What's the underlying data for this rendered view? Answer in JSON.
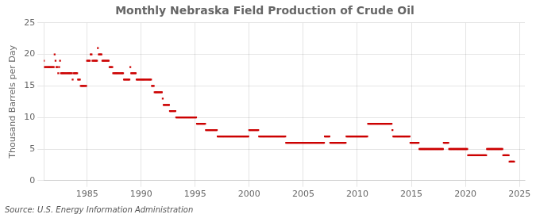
{
  "chart_data": {
    "type": "scatter",
    "title": "Monthly Nebraska Field Production of Crude Oil",
    "y_label": "Thousand Barrels per Day",
    "annotations": [
      "Source: U.S. Energy Information Administration"
    ],
    "color": "#cc0000",
    "marker": "square",
    "grid": true,
    "xlim": [
      1981.0,
      2025.5
    ],
    "xticks": [
      1985,
      1990,
      1995,
      2000,
      2005,
      2010,
      2015,
      2020,
      2025
    ],
    "ylim": [
      0,
      25
    ],
    "yticks": [
      0,
      5,
      10,
      15,
      20,
      25
    ],
    "x": [
      1981,
      1981.0833333333,
      1981.1666666667,
      1981.25,
      1981.3333333333,
      1981.4166666667,
      1981.5,
      1981.5833333333,
      1981.6666666667,
      1981.75,
      1981.8333333333,
      1981.9166666667,
      1982,
      1982.0833333333,
      1982.1666666667,
      1982.25,
      1982.3333333333,
      1982.4166666667,
      1982.5,
      1982.5833333333,
      1982.6666666667,
      1982.75,
      1982.8333333333,
      1982.9166666667,
      1983,
      1983.0833333333,
      1983.1666666667,
      1983.25,
      1983.3333333333,
      1983.4166666667,
      1983.5,
      1983.5833333333,
      1983.6666666667,
      1983.75,
      1983.8333333333,
      1983.9166666667,
      1984,
      1984.0833333333,
      1984.1666666667,
      1984.25,
      1984.3333333333,
      1984.4166666667,
      1984.5,
      1984.5833333333,
      1984.6666666667,
      1984.75,
      1984.8333333333,
      1984.9166666667,
      1985,
      1985.0833333333,
      1985.1666666667,
      1985.25,
      1985.3333333333,
      1985.4166666667,
      1985.5,
      1985.5833333333,
      1985.6666666667,
      1985.75,
      1985.8333333333,
      1985.9166666667,
      1986,
      1986.0833333333,
      1986.1666666667,
      1986.25,
      1986.3333333333,
      1986.4166666667,
      1986.5,
      1986.5833333333,
      1986.6666666667,
      1986.75,
      1986.8333333333,
      1986.9166666667,
      1987,
      1987.0833333333,
      1987.1666666667,
      1987.25,
      1987.3333333333,
      1987.4166666667,
      1987.5,
      1987.5833333333,
      1987.6666666667,
      1987.75,
      1987.8333333333,
      1987.9166666667,
      1988,
      1988.0833333333,
      1988.1666666667,
      1988.25,
      1988.3333333333,
      1988.4166666667,
      1988.5,
      1988.5833333333,
      1988.6666666667,
      1988.75,
      1988.8333333333,
      1988.9166666667,
      1989,
      1989.0833333333,
      1989.1666666667,
      1989.25,
      1989.3333333333,
      1989.4166666667,
      1989.5,
      1989.5833333333,
      1989.6666666667,
      1989.75,
      1989.8333333333,
      1989.9166666667,
      1990,
      1990.0833333333,
      1990.1666666667,
      1990.25,
      1990.3333333333,
      1990.4166666667,
      1990.5,
      1990.5833333333,
      1990.6666666667,
      1990.75,
      1990.8333333333,
      1990.9166666667,
      1991,
      1991.0833333333,
      1991.1666666667,
      1991.25,
      1991.3333333333,
      1991.4166666667,
      1991.5,
      1991.5833333333,
      1991.6666666667,
      1991.75,
      1991.8333333333,
      1991.9166666667,
      1992,
      1992.0833333333,
      1992.1666666667,
      1992.25,
      1992.3333333333,
      1992.4166666667,
      1992.5,
      1992.5833333333,
      1992.6666666667,
      1992.75,
      1992.8333333333,
      1992.9166666667,
      1993,
      1993.0833333333,
      1993.1666666667,
      1993.25,
      1993.3333333333,
      1993.4166666667,
      1993.5,
      1993.5833333333,
      1993.6666666667,
      1993.75,
      1993.8333333333,
      1993.9166666667,
      1994,
      1994.0833333333,
      1994.1666666667,
      1994.25,
      1994.3333333333,
      1994.4166666667,
      1994.5,
      1994.5833333333,
      1994.6666666667,
      1994.75,
      1994.8333333333,
      1994.9166666667,
      1995,
      1995.0833333333,
      1995.1666666667,
      1995.25,
      1995.3333333333,
      1995.4166666667,
      1995.5,
      1995.5833333333,
      1995.6666666667,
      1995.75,
      1995.8333333333,
      1995.9166666667,
      1996,
      1996.0833333333,
      1996.1666666667,
      1996.25,
      1996.3333333333,
      1996.4166666667,
      1996.5,
      1996.5833333333,
      1996.6666666667,
      1996.75,
      1996.8333333333,
      1996.9166666667,
      1997,
      1997.0833333333,
      1997.1666666667,
      1997.25,
      1997.3333333333,
      1997.4166666667,
      1997.5,
      1997.5833333333,
      1997.6666666667,
      1997.75,
      1997.8333333333,
      1997.9166666667,
      1998,
      1998.0833333333,
      1998.1666666667,
      1998.25,
      1998.3333333333,
      1998.4166666667,
      1998.5,
      1998.5833333333,
      1998.6666666667,
      1998.75,
      1998.8333333333,
      1998.9166666667,
      1999,
      1999.0833333333,
      1999.1666666667,
      1999.25,
      1999.3333333333,
      1999.4166666667,
      1999.5,
      1999.5833333333,
      1999.6666666667,
      1999.75,
      1999.8333333333,
      1999.9166666667,
      2000,
      2000.0833333333,
      2000.1666666667,
      2000.25,
      2000.3333333333,
      2000.4166666667,
      2000.5,
      2000.5833333333,
      2000.6666666667,
      2000.75,
      2000.8333333333,
      2000.9166666667,
      2001,
      2001.0833333333,
      2001.1666666667,
      2001.25,
      2001.3333333333,
      2001.4166666667,
      2001.5,
      2001.5833333333,
      2001.6666666667,
      2001.75,
      2001.8333333333,
      2001.9166666667,
      2002,
      2002.0833333333,
      2002.1666666667,
      2002.25,
      2002.3333333333,
      2002.4166666667,
      2002.5,
      2002.5833333333,
      2002.6666666667,
      2002.75,
      2002.8333333333,
      2002.9166666667,
      2003,
      2003.0833333333,
      2003.1666666667,
      2003.25,
      2003.3333333333,
      2003.4166666667,
      2003.5,
      2003.5833333333,
      2003.6666666667,
      2003.75,
      2003.8333333333,
      2003.9166666667,
      2004,
      2004.0833333333,
      2004.1666666667,
      2004.25,
      2004.3333333333,
      2004.4166666667,
      2004.5,
      2004.5833333333,
      2004.6666666667,
      2004.75,
      2004.8333333333,
      2004.9166666667,
      2005,
      2005.0833333333,
      2005.1666666667,
      2005.25,
      2005.3333333333,
      2005.4166666667,
      2005.5,
      2005.5833333333,
      2005.6666666667,
      2005.75,
      2005.8333333333,
      2005.9166666667,
      2006,
      2006.0833333333,
      2006.1666666667,
      2006.25,
      2006.3333333333,
      2006.4166666667,
      2006.5,
      2006.5833333333,
      2006.6666666667,
      2006.75,
      2006.8333333333,
      2006.9166666667,
      2007,
      2007.0833333333,
      2007.1666666667,
      2007.25,
      2007.3333333333,
      2007.4166666667,
      2007.5,
      2007.5833333333,
      2007.6666666667,
      2007.75,
      2007.8333333333,
      2007.9166666667,
      2008,
      2008.0833333333,
      2008.1666666667,
      2008.25,
      2008.3333333333,
      2008.4166666667,
      2008.5,
      2008.5833333333,
      2008.6666666667,
      2008.75,
      2008.8333333333,
      2008.9166666667,
      2009,
      2009.0833333333,
      2009.1666666667,
      2009.25,
      2009.3333333333,
      2009.4166666667,
      2009.5,
      2009.5833333333,
      2009.6666666667,
      2009.75,
      2009.8333333333,
      2009.9166666667,
      2010,
      2010.0833333333,
      2010.1666666667,
      2010.25,
      2010.3333333333,
      2010.4166666667,
      2010.5,
      2010.5833333333,
      2010.6666666667,
      2010.75,
      2010.8333333333,
      2010.9166666667,
      2011,
      2011.0833333333,
      2011.1666666667,
      2011.25,
      2011.3333333333,
      2011.4166666667,
      2011.5,
      2011.5833333333,
      2011.6666666667,
      2011.75,
      2011.8333333333,
      2011.9166666667,
      2012,
      2012.0833333333,
      2012.1666666667,
      2012.25,
      2012.3333333333,
      2012.4166666667,
      2012.5,
      2012.5833333333,
      2012.6666666667,
      2012.75,
      2012.8333333333,
      2012.9166666667,
      2013,
      2013.0833333333,
      2013.1666666667,
      2013.25,
      2013.3333333333,
      2013.4166666667,
      2013.5,
      2013.5833333333,
      2013.6666666667,
      2013.75,
      2013.8333333333,
      2013.9166666667,
      2014,
      2014.0833333333,
      2014.1666666667,
      2014.25,
      2014.3333333333,
      2014.4166666667,
      2014.5,
      2014.5833333333,
      2014.6666666667,
      2014.75,
      2014.8333333333,
      2014.9166666667,
      2015,
      2015.0833333333,
      2015.1666666667,
      2015.25,
      2015.3333333333,
      2015.4166666667,
      2015.5,
      2015.5833333333,
      2015.6666666667,
      2015.75,
      2015.8333333333,
      2015.9166666667,
      2016,
      2016.0833333333,
      2016.1666666667,
      2016.25,
      2016.3333333333,
      2016.4166666667,
      2016.5,
      2016.5833333333,
      2016.6666666667,
      2016.75,
      2016.8333333333,
      2016.9166666667,
      2017,
      2017.0833333333,
      2017.1666666667,
      2017.25,
      2017.3333333333,
      2017.4166666667,
      2017.5,
      2017.5833333333,
      2017.6666666667,
      2017.75,
      2017.8333333333,
      2017.9166666667,
      2018,
      2018.0833333333,
      2018.1666666667,
      2018.25,
      2018.3333333333,
      2018.4166666667,
      2018.5,
      2018.5833333333,
      2018.6666666667,
      2018.75,
      2018.8333333333,
      2018.9166666667,
      2019,
      2019.0833333333,
      2019.1666666667,
      2019.25,
      2019.3333333333,
      2019.4166666667,
      2019.5,
      2019.5833333333,
      2019.6666666667,
      2019.75,
      2019.8333333333,
      2019.9166666667,
      2020,
      2020.0833333333,
      2020.1666666667,
      2020.25,
      2020.3333333333,
      2020.4166666667,
      2020.5,
      2020.5833333333,
      2020.6666666667,
      2020.75,
      2020.8333333333,
      2020.9166666667,
      2021,
      2021.0833333333,
      2021.1666666667,
      2021.25,
      2021.3333333333,
      2021.4166666667,
      2021.5,
      2021.5833333333,
      2021.6666666667,
      2021.75,
      2021.8333333333,
      2021.9166666667,
      2022,
      2022.0833333333,
      2022.1666666667,
      2022.25,
      2022.3333333333,
      2022.4166666667,
      2022.5,
      2022.5833333333,
      2022.6666666667,
      2022.75,
      2022.8333333333,
      2022.9166666667,
      2023,
      2023.0833333333,
      2023.1666666667,
      2023.25,
      2023.3333333333,
      2023.4166666667,
      2023.5,
      2023.5833333333,
      2023.6666666667,
      2023.75,
      2023.8333333333,
      2023.9166666667,
      2024,
      2024.0833333333,
      2024.1666666667,
      2024.25,
      2024.3333333333,
      2024.4166666667,
      2024.5
    ],
    "values": [
      19,
      18,
      18,
      18,
      18,
      18,
      18,
      18,
      18,
      18,
      18,
      18,
      20,
      19,
      18,
      18,
      17,
      18,
      19,
      17,
      17,
      17,
      17,
      17,
      17,
      17,
      17,
      17,
      17,
      17,
      17,
      17,
      16,
      17,
      17,
      17,
      17,
      17,
      16,
      16,
      16,
      15,
      15,
      15,
      15,
      15,
      15,
      15,
      19,
      19,
      19,
      19,
      20,
      20,
      19,
      19,
      19,
      19,
      19,
      19,
      21,
      20,
      20,
      20,
      20,
      19,
      19,
      19,
      19,
      19,
      19,
      19,
      19,
      18,
      18,
      18,
      18,
      17,
      17,
      17,
      17,
      17,
      17,
      17,
      17,
      17,
      17,
      17,
      17,
      16,
      16,
      16,
      16,
      16,
      16,
      16,
      18,
      17,
      17,
      17,
      17,
      17,
      17,
      16,
      16,
      16,
      16,
      16,
      16,
      16,
      16,
      16,
      16,
      16,
      16,
      16,
      16,
      16,
      16,
      16,
      15,
      15,
      15,
      14,
      14,
      14,
      14,
      14,
      14,
      14,
      14,
      14,
      13,
      12,
      12,
      12,
      12,
      12,
      12,
      12,
      11,
      11,
      11,
      11,
      11,
      11,
      11,
      10,
      10,
      10,
      10,
      10,
      10,
      10,
      10,
      10,
      10,
      10,
      10,
      10,
      10,
      10,
      10,
      10,
      10,
      10,
      10,
      10,
      10,
      10,
      9,
      9,
      9,
      9,
      9,
      9,
      9,
      9,
      9,
      9,
      8,
      8,
      8,
      8,
      8,
      8,
      8,
      8,
      8,
      8,
      8,
      8,
      8,
      7,
      7,
      7,
      7,
      7,
      7,
      7,
      7,
      7,
      7,
      7,
      7,
      7,
      7,
      7,
      7,
      7,
      7,
      7,
      7,
      7,
      7,
      7,
      7,
      7,
      7,
      7,
      7,
      7,
      7,
      7,
      7,
      7,
      7,
      7,
      8,
      8,
      8,
      8,
      8,
      8,
      8,
      8,
      8,
      8,
      8,
      7,
      7,
      7,
      7,
      7,
      7,
      7,
      7,
      7,
      7,
      7,
      7,
      7,
      7,
      7,
      7,
      7,
      7,
      7,
      7,
      7,
      7,
      7,
      7,
      7,
      7,
      7,
      7,
      7,
      7,
      6,
      6,
      6,
      6,
      6,
      6,
      6,
      6,
      6,
      6,
      6,
      6,
      6,
      6,
      6,
      6,
      6,
      6,
      6,
      6,
      6,
      6,
      6,
      6,
      6,
      6,
      6,
      6,
      6,
      6,
      6,
      6,
      6,
      6,
      6,
      6,
      6,
      6,
      6,
      6,
      6,
      6,
      6,
      7,
      7,
      7,
      7,
      7,
      7,
      6,
      6,
      6,
      6,
      6,
      6,
      6,
      6,
      6,
      6,
      6,
      6,
      6,
      6,
      6,
      6,
      6,
      6,
      7,
      7,
      7,
      7,
      7,
      7,
      7,
      7,
      7,
      7,
      7,
      7,
      7,
      7,
      7,
      7,
      7,
      7,
      7,
      7,
      7,
      7,
      7,
      7,
      9,
      9,
      9,
      9,
      9,
      9,
      9,
      9,
      9,
      9,
      9,
      9,
      9,
      9,
      9,
      9,
      9,
      9,
      9,
      9,
      9,
      9,
      9,
      9,
      9,
      9,
      9,
      8,
      7,
      7,
      7,
      7,
      7,
      7,
      7,
      7,
      7,
      7,
      7,
      7,
      7,
      7,
      7,
      7,
      7,
      7,
      7,
      6,
      6,
      6,
      6,
      6,
      6,
      6,
      6,
      6,
      6,
      5,
      5,
      5,
      5,
      5,
      5,
      5,
      5,
      5,
      5,
      5,
      5,
      5,
      5,
      5,
      5,
      5,
      5,
      5,
      5,
      5,
      5,
      5,
      5,
      5,
      5,
      5,
      6,
      6,
      6,
      6,
      6,
      6,
      5,
      5,
      5,
      5,
      5,
      5,
      5,
      5,
      5,
      5,
      5,
      5,
      5,
      5,
      5,
      5,
      5,
      5,
      5,
      5,
      5,
      4,
      4,
      4,
      4,
      4,
      4,
      4,
      4,
      4,
      4,
      4,
      4,
      4,
      4,
      4,
      4,
      4,
      4,
      4,
      4,
      4,
      5,
      5,
      5,
      5,
      5,
      5,
      5,
      5,
      5,
      5,
      5,
      5,
      5,
      5,
      5,
      5,
      5,
      5,
      4,
      4,
      4,
      4,
      4,
      4,
      4,
      3,
      3,
      3,
      3,
      3,
      3
    ]
  }
}
